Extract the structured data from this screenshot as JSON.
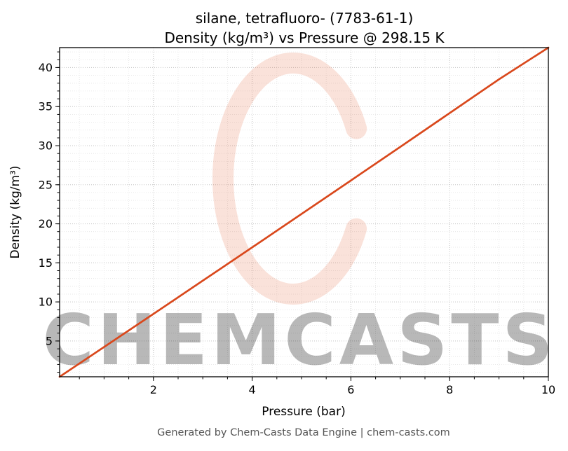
{
  "header": {
    "title_line1": "silane, tetrafluoro- (7783-61-1)",
    "title_line2": "Density (kg/m³) vs Pressure @ 298.15 K"
  },
  "footer": {
    "credit": "Generated by Chem-Casts Data Engine | chem-casts.com"
  },
  "watermark": {
    "text": "CHEMCASTS",
    "color": "#e2491b"
  },
  "colors": {
    "line": "#d9481c",
    "grid_major": "#c7c7c7",
    "grid_minor": "#e4e4e4",
    "footer_text": "#555555"
  },
  "chart_data": {
    "type": "line",
    "title": "silane, tetrafluoro- (7783-61-1)\nDensity (kg/m³) vs Pressure @ 298.15 K",
    "xlabel": "Pressure (bar)",
    "ylabel": "Density (kg/m³)",
    "xlim": [
      0.1,
      10
    ],
    "ylim": [
      0.42,
      42.55
    ],
    "x_ticks": [
      2,
      4,
      6,
      8,
      10
    ],
    "y_ticks": [
      5,
      10,
      15,
      20,
      25,
      30,
      35,
      40
    ],
    "x_minor_step": 0.5,
    "y_minor_step": 1,
    "grid": true,
    "legend": false,
    "series": [
      {
        "name": "Density @ 298.15 K",
        "color": "#d9481c",
        "x": [
          0.1,
          1,
          2,
          3,
          4,
          5,
          6,
          7,
          8,
          9,
          10
        ],
        "y": [
          0.42,
          4.23,
          8.47,
          12.72,
          16.98,
          21.26,
          25.55,
          29.85,
          34.17,
          38.5,
          42.55
        ]
      }
    ]
  }
}
